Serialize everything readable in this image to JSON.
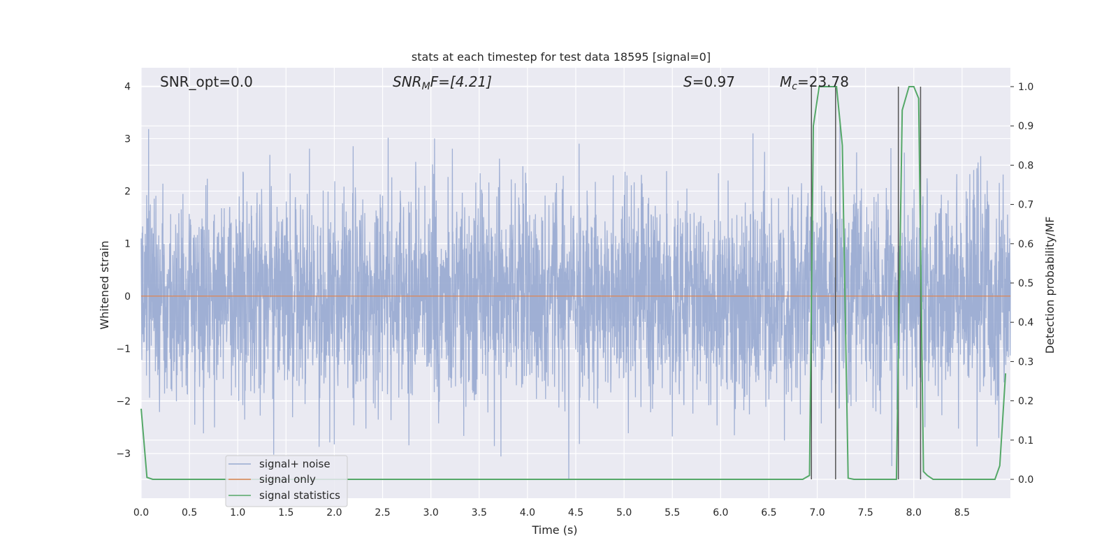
{
  "chart_data": {
    "type": "line",
    "title": "stats at each timestep for test data 18595 [signal=0]",
    "xlabel": "Time (s)",
    "ylabel": "Whitened strain",
    "y2label": "Detection probability/MF",
    "xlim": [
      0.0,
      9.0
    ],
    "ylim": [
      -3.85,
      4.35
    ],
    "y2lim": [
      -0.048,
      1.048
    ],
    "x_ticks": [
      "0.0",
      "0.5",
      "1.0",
      "1.5",
      "2.0",
      "2.5",
      "3.0",
      "3.5",
      "4.0",
      "4.5",
      "5.0",
      "5.5",
      "6.0",
      "6.5",
      "7.0",
      "7.5",
      "8.0",
      "8.5"
    ],
    "y_ticks": [
      "4",
      "3",
      "2",
      "1",
      "0",
      "−1",
      "−2",
      "−3"
    ],
    "y2_ticks": [
      "1.0",
      "0.9",
      "0.8",
      "0.7",
      "0.6",
      "0.5",
      "0.4",
      "0.3",
      "0.2",
      "0.1",
      "0.0"
    ],
    "grid": true,
    "legend_position": "lower-left",
    "annotations": {
      "snr_opt": "SNR_opt=0.0",
      "snr_mf_base": "SNR",
      "snr_mf_sub": "M",
      "snr_mf_rest": "F=[4.21]",
      "s_var": "S",
      "s_rest": "=0.97",
      "mc_var": "M",
      "mc_sub": "c",
      "mc_rest": "=23.78"
    },
    "series": [
      {
        "name": "signal+ noise",
        "color": "#97a9d0",
        "noise_sigma": 1.0,
        "sample_rate_hz": 400
      },
      {
        "name": "signal only",
        "color": "#dd8452",
        "values_constant": 0.0
      },
      {
        "name": "signal statistics",
        "color": "#55a868",
        "axis": "right",
        "x": [
          0.0,
          0.06,
          0.12,
          6.85,
          6.92,
          6.96,
          7.02,
          7.08,
          7.15,
          7.2,
          7.26,
          7.32,
          7.38,
          7.82,
          7.88,
          7.95,
          8.0,
          8.05,
          8.1,
          8.14,
          8.2,
          8.84,
          8.89,
          8.95
        ],
        "y": [
          0.18,
          0.005,
          0.0,
          0.0,
          0.01,
          0.9,
          1.0,
          1.0,
          1.0,
          1.0,
          0.85,
          0.003,
          0.0,
          0.0,
          0.94,
          1.0,
          1.0,
          0.97,
          0.02,
          0.01,
          0.0,
          0.0,
          0.035,
          0.27
        ]
      }
    ],
    "vlines": [
      {
        "x": 6.94,
        "y2_top": 1.0
      },
      {
        "x": 7.19,
        "y2_top": 1.0
      },
      {
        "x": 7.84,
        "y2_top": 1.0
      },
      {
        "x": 8.07,
        "y2_top": 1.0
      }
    ]
  }
}
